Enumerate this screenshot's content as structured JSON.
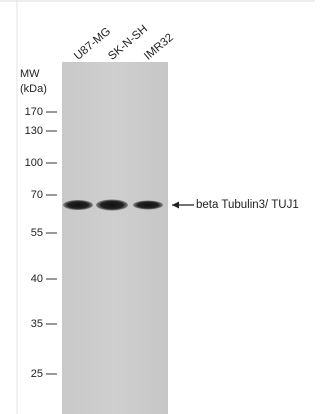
{
  "lanes": [
    "U87-MG",
    "SK-N-SH",
    "IMR32"
  ],
  "mw_label": "MW",
  "mw_unit": "(kDa)",
  "markers": [
    "170",
    "130",
    "100",
    "70",
    "55",
    "40",
    "35",
    "25"
  ],
  "band_label": "beta Tubulin3/ TUJ1"
}
